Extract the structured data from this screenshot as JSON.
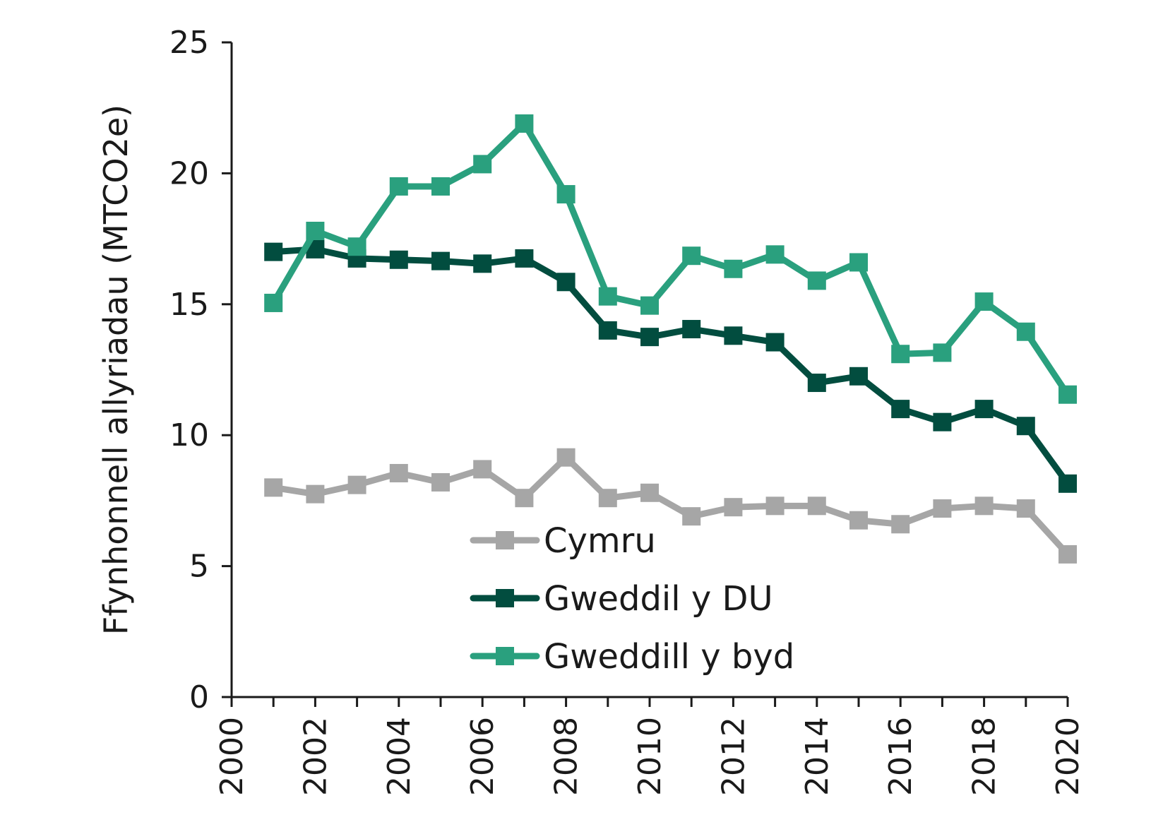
{
  "chart_data": {
    "type": "line",
    "title": "",
    "xlabel": "",
    "ylabel": "Ffynhonnell allyriadau (MTCO2e)",
    "xlim": [
      2000,
      2020
    ],
    "ylim": [
      0,
      25
    ],
    "y_ticks": [
      0,
      5,
      10,
      15,
      20,
      25
    ],
    "x_ticks": [
      2000,
      2002,
      2004,
      2006,
      2008,
      2010,
      2012,
      2014,
      2016,
      2018,
      2020
    ],
    "grid": false,
    "legend_position": "bottom-center",
    "x": [
      2001,
      2002,
      2003,
      2004,
      2005,
      2006,
      2007,
      2008,
      2009,
      2010,
      2011,
      2012,
      2013,
      2014,
      2015,
      2016,
      2017,
      2018,
      2019,
      2020
    ],
    "series": [
      {
        "name": "Cymru",
        "color": "#a6a6a6",
        "values": [
          8.0,
          7.75,
          8.1,
          8.55,
          8.2,
          8.7,
          7.6,
          9.15,
          7.6,
          7.8,
          6.9,
          7.25,
          7.3,
          7.3,
          6.75,
          6.6,
          7.2,
          7.3,
          7.2,
          5.45
        ]
      },
      {
        "name": "Gweddil y DU",
        "color": "#024d3f",
        "values": [
          17.0,
          17.1,
          16.75,
          16.7,
          16.65,
          16.55,
          16.75,
          15.85,
          14.0,
          13.75,
          14.05,
          13.8,
          13.55,
          12.0,
          12.25,
          11.0,
          10.5,
          11.0,
          10.35,
          8.15
        ]
      },
      {
        "name": "Gweddill y byd",
        "color": "#2aa07e",
        "values": [
          15.05,
          17.8,
          17.2,
          19.5,
          19.5,
          20.35,
          21.9,
          19.2,
          15.3,
          14.95,
          16.85,
          16.35,
          16.9,
          15.9,
          16.6,
          13.1,
          13.15,
          15.1,
          13.95,
          11.55
        ]
      }
    ]
  }
}
